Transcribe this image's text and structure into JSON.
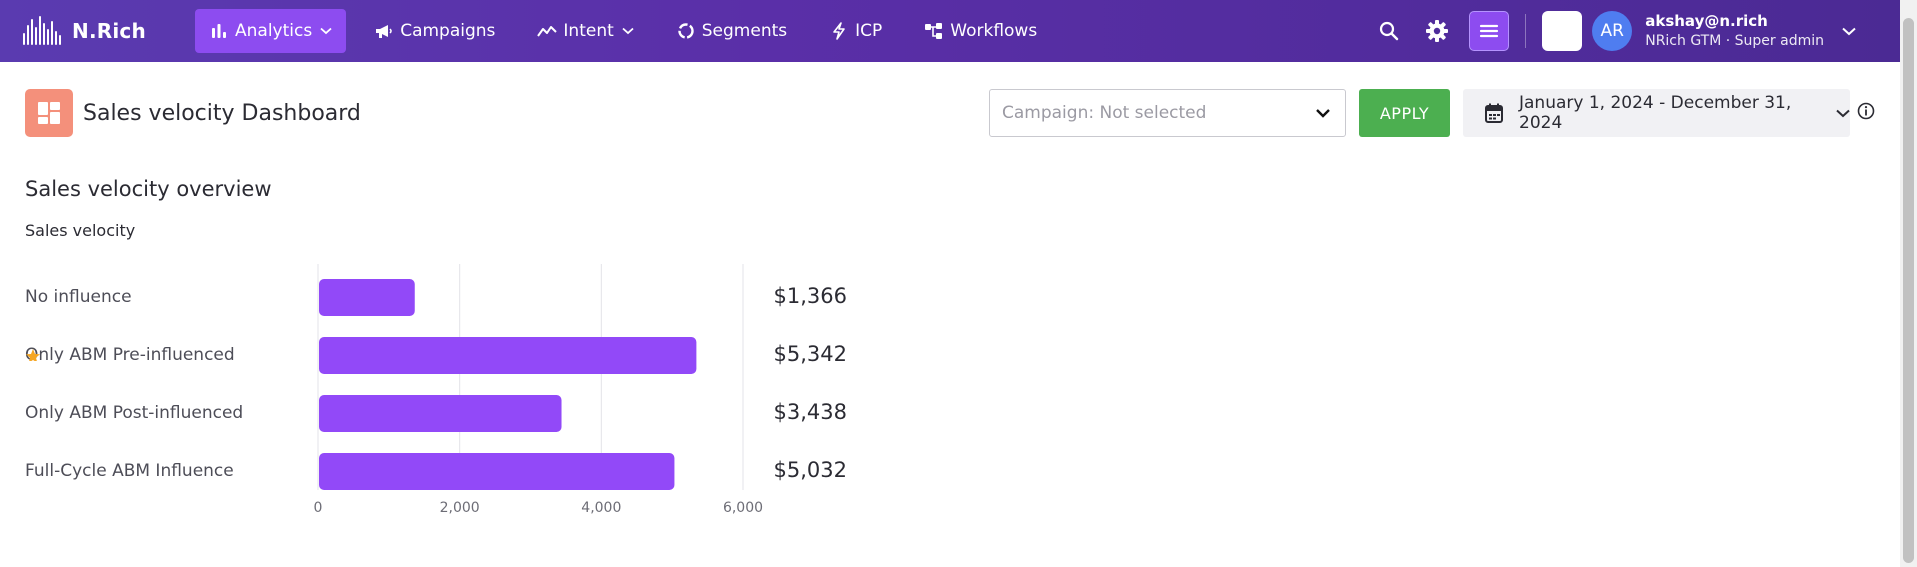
{
  "app": {
    "brand": "N.Rich"
  },
  "nav": {
    "items": [
      {
        "label": "Analytics",
        "icon": "bar-chart-icon",
        "active": true,
        "has_dropdown": true
      },
      {
        "label": "Campaigns",
        "icon": "megaphone-icon",
        "active": false,
        "has_dropdown": false
      },
      {
        "label": "Intent",
        "icon": "trend-icon",
        "active": false,
        "has_dropdown": true
      },
      {
        "label": "Segments",
        "icon": "donut-icon",
        "active": false,
        "has_dropdown": false
      },
      {
        "label": "ICP",
        "icon": "bolt-icon",
        "active": false,
        "has_dropdown": false
      },
      {
        "label": "Workflows",
        "icon": "workflow-icon",
        "active": false,
        "has_dropdown": false
      }
    ]
  },
  "user": {
    "initials": "AR",
    "email": "akshay@n.rich",
    "org": "NRich GTM · Super admin"
  },
  "page": {
    "title": "Sales velocity Dashboard",
    "campaign_select": {
      "value": "Campaign: Not selected"
    },
    "apply_label": "APPLY",
    "date_range": "January 1, 2024 - December 31, 2024"
  },
  "section": {
    "title": "Sales velocity overview",
    "subtitle": "Sales velocity"
  },
  "colors": {
    "bar": "#9249f8",
    "nav_active": "#8d4cf0",
    "apply": "#4caf50",
    "star": "#f5a623"
  },
  "chart_data": {
    "type": "bar",
    "orientation": "horizontal",
    "categories": [
      "No influence",
      "Only ABM Pre-influenced",
      "Only ABM Post-influenced",
      "Full-Cycle ABM Influence"
    ],
    "values": [
      1366,
      5342,
      3438,
      5032
    ],
    "value_labels": [
      "$1,366",
      "$5,342",
      "$3,438",
      "$5,032"
    ],
    "starred_category": "Only ABM Pre-influenced",
    "xlim": [
      0,
      6000
    ],
    "ticks": [
      "0",
      "2,000",
      "4,000",
      "6,000"
    ],
    "tick_values": [
      0,
      2000,
      4000,
      6000
    ],
    "grid": true
  }
}
